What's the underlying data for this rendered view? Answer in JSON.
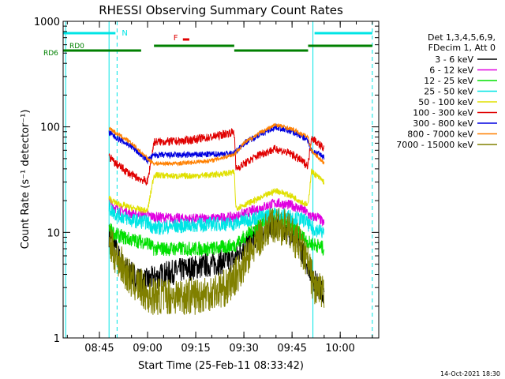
{
  "chart_data": {
    "type": "line",
    "title": "RHESSI Observing Summary Count Rates",
    "xlabel": "Start Time (25-Feb-11 08:33:42)",
    "ylabel": "Count Rate (s⁻¹ detector⁻¹)",
    "y_scale": "log",
    "ylim": [
      1,
      1000
    ],
    "xlim": [
      "08:33:42",
      "10:12:00"
    ],
    "x_ticks": [
      "08:45",
      "09:00",
      "09:15",
      "09:30",
      "09:45",
      "10:00"
    ],
    "y_ticks": [
      "1",
      "10",
      "100",
      "1000"
    ],
    "grid": false,
    "legend_position": "top-right",
    "legend_header": [
      "Det 1,3,4,5,6,9,",
      "FDecim 1, Att 0"
    ],
    "timestamp": "14-Oct-2021 18:30",
    "colors": {
      "axes": "#000000",
      "night": "#00e5e5",
      "saa": "#00e5e5",
      "decimation": "#008000",
      "flare": "#e00000"
    },
    "flags": {
      "night_label": "N",
      "flare_label": "F",
      "rd0_label": "RD0",
      "rd6_label": "RD6",
      "night_segments": [
        [
          "08:33:42",
          "08:50:00"
        ],
        [
          "09:52:00",
          "10:10:00"
        ]
      ],
      "flare_segment": [
        "09:11:00",
        "09:13:00"
      ],
      "decim_segments": [
        [
          "08:33:42",
          "08:58:00"
        ],
        [
          "09:02:00",
          "09:27:00"
        ],
        [
          "09:27:00",
          "09:50:00"
        ],
        [
          "09:50:00",
          "10:10:00"
        ]
      ]
    },
    "vlines": [
      {
        "time": "08:34:30",
        "style": "solid"
      },
      {
        "time": "08:48:00",
        "style": "solid"
      },
      {
        "time": "08:50:30",
        "style": "dashed"
      },
      {
        "time": "09:51:30",
        "style": "solid"
      },
      {
        "time": "10:10:00",
        "style": "dashed"
      }
    ],
    "series": [
      {
        "name": "3 - 6 keV",
        "color": "#000000",
        "noise": 0.12,
        "points": [
          [
            "08:48",
            "9.5"
          ],
          [
            "08:50",
            "7"
          ],
          [
            "08:52",
            "5"
          ],
          [
            "08:55",
            "4"
          ],
          [
            "08:58",
            "3.5"
          ],
          [
            "09:00",
            "3.5"
          ],
          [
            "09:05",
            "4"
          ],
          [
            "09:12",
            "4.5"
          ],
          [
            "09:20",
            "5"
          ],
          [
            "09:27",
            "5.5"
          ],
          [
            "09:30",
            "7.5"
          ],
          [
            "09:35",
            "10"
          ],
          [
            "09:39",
            "12"
          ],
          [
            "09:43",
            "11"
          ],
          [
            "09:47",
            "8"
          ],
          [
            "09:50",
            "5"
          ],
          [
            "09:52",
            "3.5"
          ],
          [
            "09:55",
            "2.5"
          ]
        ]
      },
      {
        "name": "6 - 12 keV",
        "color": "#e000e0",
        "noise": 0.05,
        "points": [
          [
            "08:48",
            "20"
          ],
          [
            "08:50",
            "17"
          ],
          [
            "08:55",
            "15"
          ],
          [
            "09:00",
            "14.5"
          ],
          [
            "09:02",
            "14"
          ],
          [
            "09:10",
            "13.5"
          ],
          [
            "09:20",
            "13.5"
          ],
          [
            "09:27",
            "14"
          ],
          [
            "09:30",
            "15"
          ],
          [
            "09:35",
            "17"
          ],
          [
            "09:40",
            "19"
          ],
          [
            "09:45",
            "18"
          ],
          [
            "09:49",
            "16"
          ],
          [
            "09:51",
            "14"
          ],
          [
            "09:53",
            "14"
          ],
          [
            "09:55",
            "12"
          ]
        ]
      },
      {
        "name": "12 - 25 keV",
        "color": "#00e000",
        "noise": 0.07,
        "points": [
          [
            "08:48",
            "11"
          ],
          [
            "08:50",
            "9.5"
          ],
          [
            "08:55",
            "8.5"
          ],
          [
            "09:00",
            "8"
          ],
          [
            "09:02",
            "7"
          ],
          [
            "09:10",
            "7"
          ],
          [
            "09:20",
            "7"
          ],
          [
            "09:27",
            "7.5"
          ],
          [
            "09:30",
            "9"
          ],
          [
            "09:35",
            "12"
          ],
          [
            "09:39",
            "14"
          ],
          [
            "09:43",
            "13"
          ],
          [
            "09:47",
            "10"
          ],
          [
            "09:50",
            "8"
          ],
          [
            "09:53",
            "7.5"
          ],
          [
            "09:55",
            "7"
          ]
        ]
      },
      {
        "name": "25 - 50 keV",
        "color": "#00e5e5",
        "noise": 0.07,
        "points": [
          [
            "08:48",
            "17"
          ],
          [
            "08:50",
            "15"
          ],
          [
            "08:55",
            "13"
          ],
          [
            "09:00",
            "12.5"
          ],
          [
            "09:02",
            "11"
          ],
          [
            "09:10",
            "11.5"
          ],
          [
            "09:20",
            "12"
          ],
          [
            "09:27",
            "12"
          ],
          [
            "09:30",
            "13"
          ],
          [
            "09:35",
            "14"
          ],
          [
            "09:40",
            "15"
          ],
          [
            "09:45",
            "14"
          ],
          [
            "09:49",
            "13"
          ],
          [
            "09:51",
            "11"
          ],
          [
            "09:53",
            "10.5"
          ],
          [
            "09:55",
            "10"
          ]
        ]
      },
      {
        "name": "50 - 100 keV",
        "color": "#e0e000",
        "noise": 0.03,
        "points": [
          [
            "08:48",
            "21"
          ],
          [
            "08:50",
            "19"
          ],
          [
            "08:55",
            "17"
          ],
          [
            "09:00",
            "16"
          ],
          [
            "09:02",
            "35"
          ],
          [
            "09:10",
            "34"
          ],
          [
            "09:20",
            "35"
          ],
          [
            "09:27",
            "37"
          ],
          [
            "09:27:30",
            "17"
          ],
          [
            "09:35",
            "21"
          ],
          [
            "09:40",
            "25"
          ],
          [
            "09:45",
            "22"
          ],
          [
            "09:50",
            "18"
          ],
          [
            "09:51",
            "38"
          ],
          [
            "09:55",
            "30"
          ]
        ]
      },
      {
        "name": "100 - 300 keV",
        "color": "#e00000",
        "noise": 0.04,
        "points": [
          [
            "08:48",
            "52"
          ],
          [
            "08:50",
            "45"
          ],
          [
            "08:55",
            "35"
          ],
          [
            "09:00",
            "30"
          ],
          [
            "09:02",
            "72"
          ],
          [
            "09:10",
            "73"
          ],
          [
            "09:20",
            "80"
          ],
          [
            "09:27",
            "90"
          ],
          [
            "09:27:30",
            "40"
          ],
          [
            "09:35",
            "55"
          ],
          [
            "09:40",
            "62"
          ],
          [
            "09:45",
            "55"
          ],
          [
            "09:50",
            "43"
          ],
          [
            "09:51",
            "80"
          ],
          [
            "09:55",
            "62"
          ]
        ]
      },
      {
        "name": "300 - 800 keV",
        "color": "#0000e0",
        "noise": 0.03,
        "points": [
          [
            "08:48",
            "88"
          ],
          [
            "08:50",
            "80"
          ],
          [
            "08:55",
            "65"
          ],
          [
            "09:00",
            "48"
          ],
          [
            "09:02",
            "54"
          ],
          [
            "09:10",
            "54"
          ],
          [
            "09:20",
            "55"
          ],
          [
            "09:27",
            "56"
          ],
          [
            "09:30",
            "70"
          ],
          [
            "09:35",
            "85"
          ],
          [
            "09:40",
            "100"
          ],
          [
            "09:45",
            "90"
          ],
          [
            "09:50",
            "75"
          ],
          [
            "09:51",
            "60"
          ],
          [
            "09:55",
            "52"
          ]
        ]
      },
      {
        "name": "800 - 7000 keV",
        "color": "#ff8000",
        "noise": 0.02,
        "points": [
          [
            "08:48",
            "98"
          ],
          [
            "08:50",
            "88"
          ],
          [
            "08:55",
            "70"
          ],
          [
            "09:00",
            "50"
          ],
          [
            "09:02",
            "45"
          ],
          [
            "09:10",
            "45"
          ],
          [
            "09:20",
            "48"
          ],
          [
            "09:27",
            "55"
          ],
          [
            "09:30",
            "70"
          ],
          [
            "09:35",
            "88"
          ],
          [
            "09:40",
            "105"
          ],
          [
            "09:45",
            "95"
          ],
          [
            "09:50",
            "80"
          ],
          [
            "09:51",
            "60"
          ],
          [
            "09:55",
            "45"
          ]
        ]
      },
      {
        "name": "7000 - 15000 keV",
        "color": "#808000",
        "noise": 0.18,
        "points": [
          [
            "08:48",
            "8"
          ],
          [
            "08:50",
            "6"
          ],
          [
            "08:55",
            "3.5"
          ],
          [
            "08:58",
            "3"
          ],
          [
            "09:00",
            "2.5"
          ],
          [
            "09:05",
            "2.5"
          ],
          [
            "09:15",
            "2.5"
          ],
          [
            "09:25",
            "3"
          ],
          [
            "09:30",
            "5"
          ],
          [
            "09:35",
            "9"
          ],
          [
            "09:39",
            "12"
          ],
          [
            "09:43",
            "11"
          ],
          [
            "09:47",
            "8"
          ],
          [
            "09:50",
            "5"
          ],
          [
            "09:52",
            "3"
          ],
          [
            "09:55",
            "2.5"
          ]
        ]
      }
    ]
  }
}
